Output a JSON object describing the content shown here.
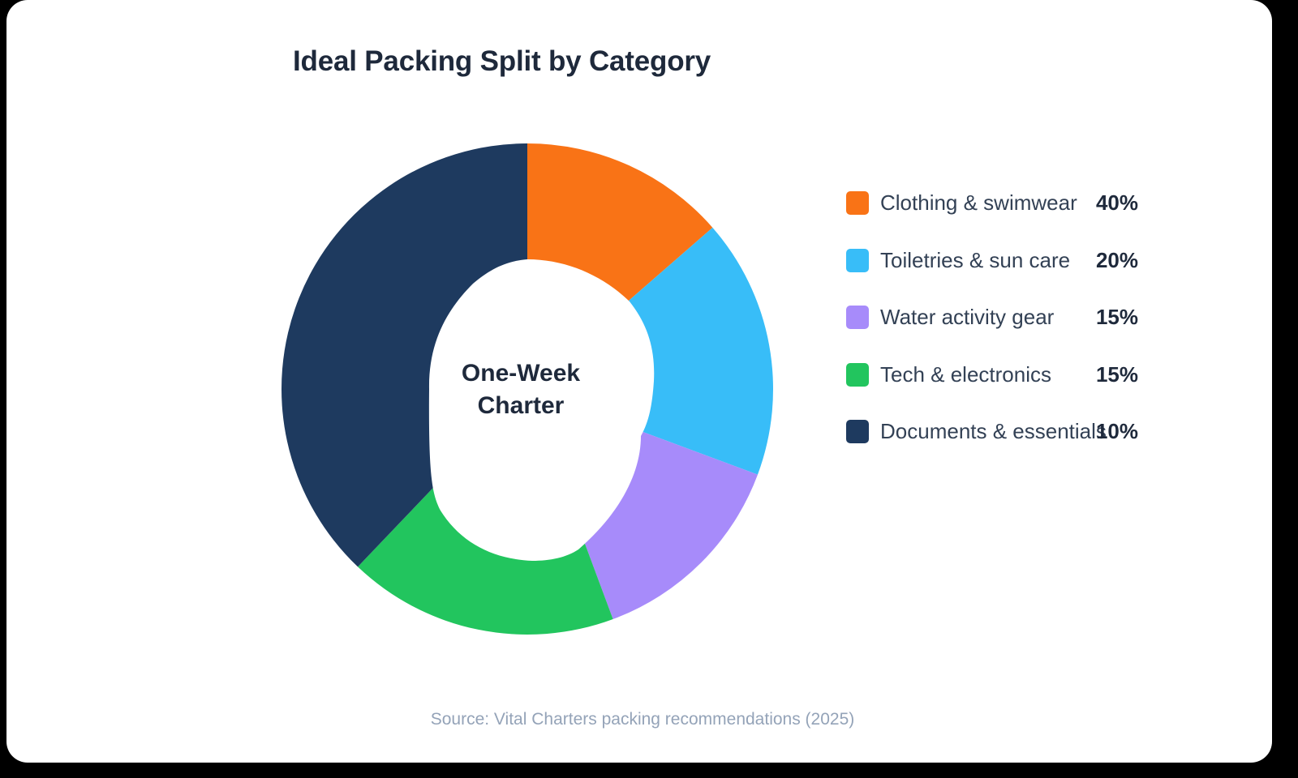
{
  "chart_data": {
    "type": "pie",
    "subtype": "donut",
    "title": "Ideal Packing Split by Category",
    "center_label": [
      "One-Week",
      "Charter"
    ],
    "categories": [
      "Clothing & swimwear",
      "Toiletries & sun care",
      "Water activity gear",
      "Tech & electronics",
      "Documents & essentials"
    ],
    "values": [
      40,
      20,
      15,
      15,
      10
    ],
    "unit": "%",
    "colors": [
      "#f97316",
      "#38bdf8",
      "#a78bfa",
      "#22c55e",
      "#1e3a5f"
    ],
    "legend_position": "right",
    "source": "Source: Vital Charters packing recommendations (2025)"
  },
  "title": "Ideal Packing Split by Category",
  "center": {
    "line1": "One-Week",
    "line2": "Charter"
  },
  "legend": [
    {
      "label": "Clothing & swimwear",
      "value": "40%",
      "color": "#f97316"
    },
    {
      "label": "Toiletries & sun care",
      "value": "20%",
      "color": "#38bdf8"
    },
    {
      "label": "Water activity gear",
      "value": "15%",
      "color": "#a78bfa"
    },
    {
      "label": "Tech & electronics",
      "value": "15%",
      "color": "#22c55e"
    },
    {
      "label": "Documents & essentials",
      "value": "10%",
      "color": "#1e3a5f"
    }
  ],
  "source": "Source: Vital Charters packing recommendations (2025)"
}
